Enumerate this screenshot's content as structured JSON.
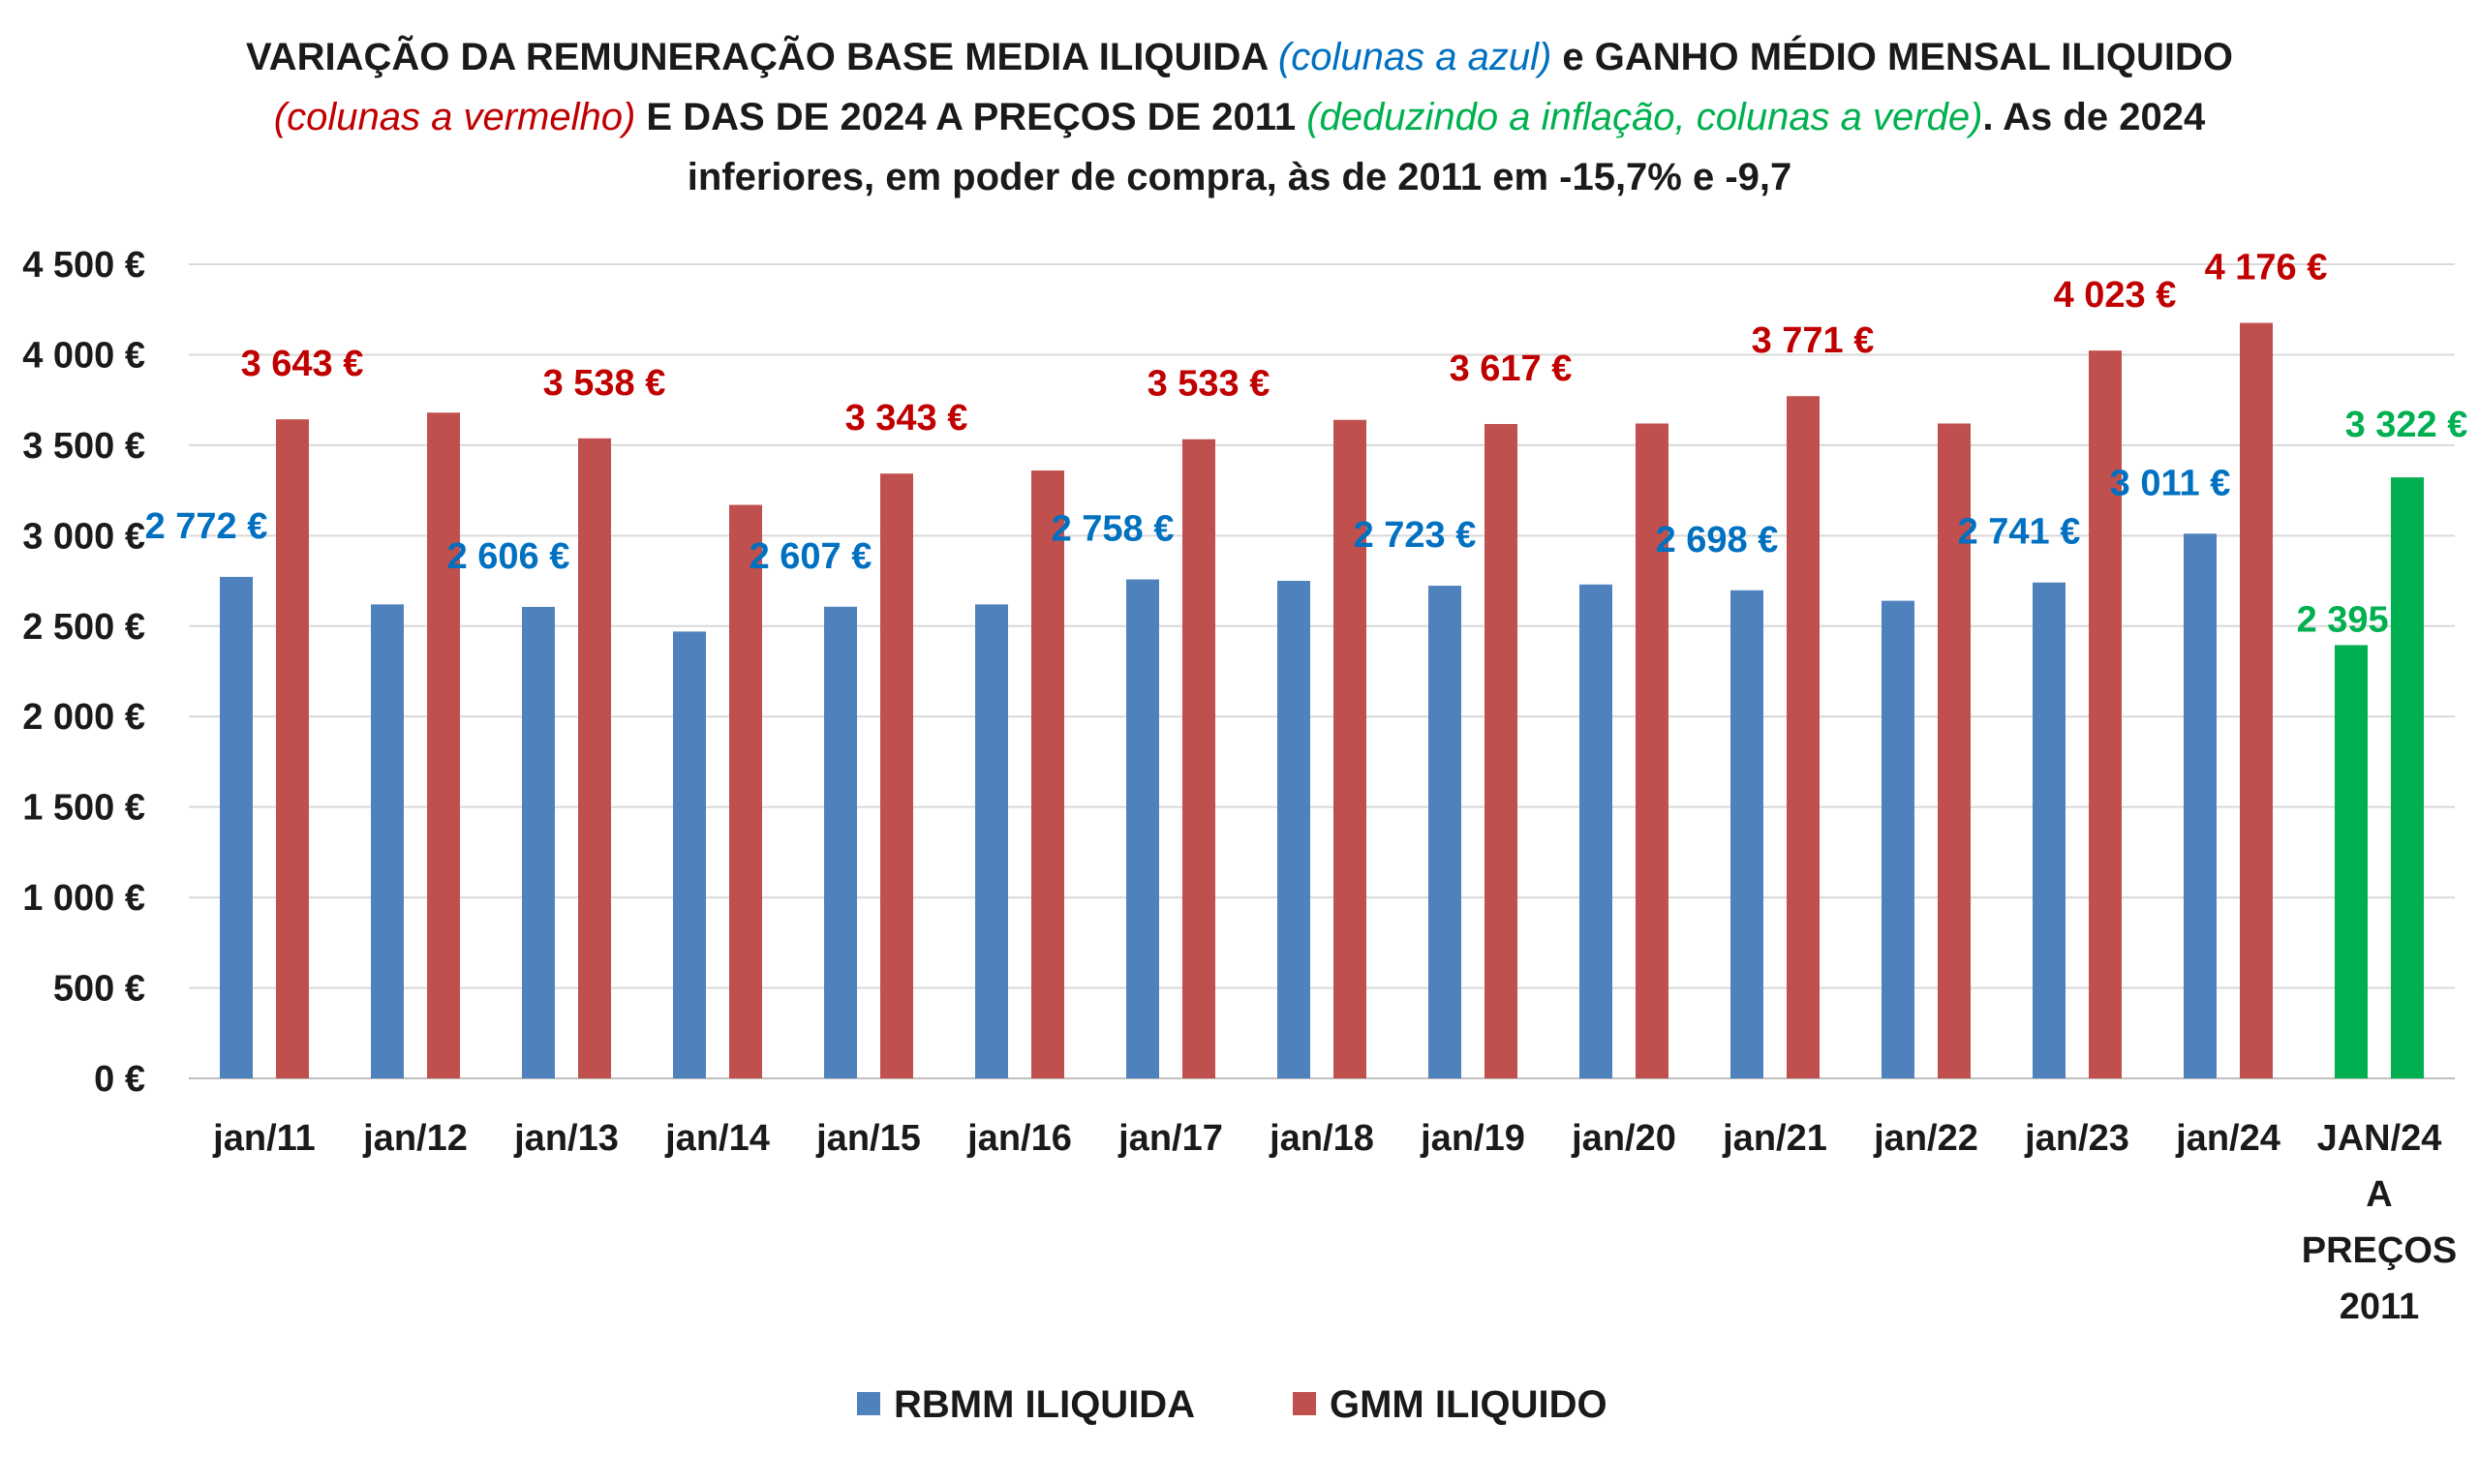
{
  "title": {
    "lines": [
      [
        {
          "text": "VARIAÇÃO DA REMUNERAÇÃO BASE MEDIA ILIQUIDA ",
          "color": "black"
        },
        {
          "text": "(colunas a azul)",
          "color": "blue"
        },
        {
          "text": " e GANHO MÉDIO MENSAL ILIQUIDO",
          "color": "black"
        }
      ],
      [
        {
          "text": "(colunas a vermelho)",
          "color": "red"
        },
        {
          "text": " E DAS DE 2024 A PREÇOS DE 2011 ",
          "color": "black"
        },
        {
          "text": "(deduzindo a inflação, colunas a verde)",
          "color": "green"
        },
        {
          "text": ". As de 2024",
          "color": "black"
        }
      ],
      [
        {
          "text": "inferiores, em poder de compra, às de 2011 em -15,7% e -9,7",
          "color": "black"
        }
      ]
    ]
  },
  "colors": {
    "blue_bar": "#4f81bd",
    "red_bar": "#c0504d",
    "green_bar": "#00b050",
    "blue_text": "#0070c0",
    "red_text": "#c00000",
    "green_text": "#00b050",
    "grid": "#d9d9d9"
  },
  "chart_data": {
    "type": "bar",
    "categories": [
      "jan/11",
      "jan/12",
      "jan/13",
      "jan/14",
      "jan/15",
      "jan/16",
      "jan/17",
      "jan/18",
      "jan/19",
      "jan/20",
      "jan/21",
      "jan/22",
      "jan/23",
      "jan/24",
      "JAN/24 A PREÇOS 2011"
    ],
    "category_lines": [
      [
        "jan/11"
      ],
      [
        "jan/12"
      ],
      [
        "jan/13"
      ],
      [
        "jan/14"
      ],
      [
        "jan/15"
      ],
      [
        "jan/16"
      ],
      [
        "jan/17"
      ],
      [
        "jan/18"
      ],
      [
        "jan/19"
      ],
      [
        "jan/20"
      ],
      [
        "jan/21"
      ],
      [
        "jan/22"
      ],
      [
        "jan/23"
      ],
      [
        "jan/24"
      ],
      [
        "JAN/24",
        "A",
        "PREÇOS",
        "2011"
      ]
    ],
    "series": [
      {
        "name": "RBMM ILIQUIDA",
        "color": "#4f81bd",
        "values": [
          2772,
          2620,
          2606,
          2470,
          2607,
          2620,
          2758,
          2750,
          2723,
          2730,
          2698,
          2640,
          2741,
          3011,
          2395
        ],
        "labels": [
          "2 772 €",
          null,
          "2 606 €",
          null,
          "2 607 €",
          null,
          "2 758 €",
          null,
          "2 723 €",
          null,
          "2 698 €",
          null,
          "2 741 €",
          "3 011 €",
          "2 395 €"
        ]
      },
      {
        "name": "GMM ILIQUIDO",
        "color": "#c0504d",
        "values": [
          3643,
          3680,
          3538,
          3170,
          3343,
          3360,
          3533,
          3640,
          3617,
          3620,
          3771,
          3620,
          4023,
          4176,
          3322
        ],
        "labels": [
          "3 643 €",
          null,
          "3 538 €",
          null,
          "3 343 €",
          null,
          "3 533 €",
          null,
          "3 617 €",
          null,
          "3 771 €",
          null,
          "4 023 €",
          "4 176 €",
          "3 322 €"
        ]
      }
    ],
    "highlight_category_index": 14,
    "highlight_color": "#00b050",
    "yticks": [
      "0 €",
      "500 €",
      "1 000 €",
      "1 500 €",
      "2 000 €",
      "2 500 €",
      "3 000 €",
      "3 500 €",
      "4 000 €",
      "4 500 €"
    ],
    "ylim": [
      0,
      4500
    ],
    "grid": true,
    "legend_position": "bottom",
    "xlabel": "",
    "ylabel": ""
  },
  "legend": [
    {
      "label": "RBMM ILIQUIDA",
      "color": "#4f81bd"
    },
    {
      "label": "GMM ILIQUIDO",
      "color": "#c0504d"
    }
  ]
}
